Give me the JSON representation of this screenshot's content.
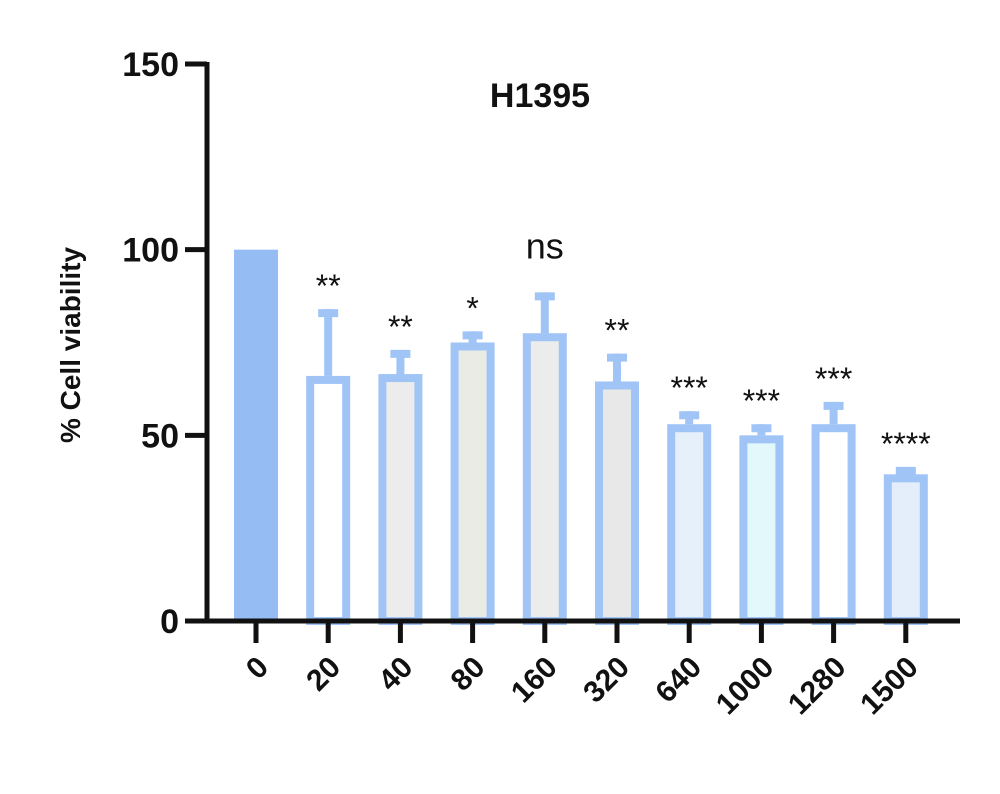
{
  "chart_data": {
    "type": "bar",
    "title": "H1395",
    "xlabel": "",
    "ylabel": "% Cell viability",
    "ylim": [
      0,
      150
    ],
    "yticks": [
      0,
      50,
      100,
      150
    ],
    "grid": false,
    "categories": [
      "0",
      "20",
      "40",
      "80",
      "160",
      "320",
      "640",
      "1000",
      "1280",
      "1500"
    ],
    "values": [
      100,
      66,
      66.5,
      75,
      77.5,
      64.5,
      53,
      50,
      53,
      39.5
    ],
    "error_upper": [
      100,
      84,
      73,
      78,
      88.5,
      72,
      56.5,
      53,
      59,
      41.5
    ],
    "annotations": [
      "",
      "**",
      "**",
      "*",
      "ns",
      "**",
      "***",
      "***",
      "***",
      "****"
    ],
    "colors": {
      "outline": "#9fc4f5",
      "fills": [
        "#95bdf4",
        "#ffffff",
        "#ececec",
        "#ebebe6",
        "#ececec",
        "#e8e8e8",
        "#e6f0fa",
        "#e2f8fb",
        "#ffffff",
        "#e3eefa"
      ]
    }
  }
}
